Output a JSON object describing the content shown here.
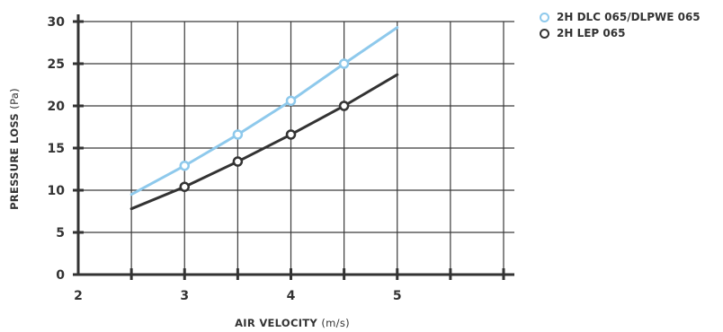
{
  "chart_data": {
    "type": "line",
    "xlabel": "AIR VELOCITY",
    "xlabel_unit": "(m/s)",
    "ylabel": "PRESSURE LOSS",
    "ylabel_unit": "(Pa)",
    "xlim": [
      2,
      6
    ],
    "ylim": [
      0,
      30
    ],
    "x_ticks": [
      2,
      3,
      4,
      5
    ],
    "y_ticks": [
      0,
      5,
      10,
      15,
      20,
      25,
      30
    ],
    "grid": true,
    "legend_position": "top-right",
    "series": [
      {
        "name": "2H DLC 065/DLPWE 065",
        "color": "#8ec9ec",
        "line": {
          "x": [
            2.5,
            3,
            3.5,
            4,
            4.5,
            5
          ],
          "y": [
            9.5,
            12.9,
            16.6,
            20.6,
            25.0,
            29.3
          ]
        },
        "markers": {
          "x": [
            3,
            3.5,
            4,
            4.5
          ],
          "y": [
            12.9,
            16.6,
            20.6,
            25.0
          ]
        }
      },
      {
        "name": "2H LEP 065",
        "color": "#333333",
        "line": {
          "x": [
            2.5,
            3,
            3.5,
            4,
            4.5,
            5
          ],
          "y": [
            7.8,
            10.4,
            13.4,
            16.6,
            20.0,
            23.7
          ]
        },
        "markers": {
          "x": [
            3,
            3.5,
            4,
            4.5
          ],
          "y": [
            10.4,
            13.4,
            16.6,
            20.0
          ]
        }
      }
    ]
  }
}
